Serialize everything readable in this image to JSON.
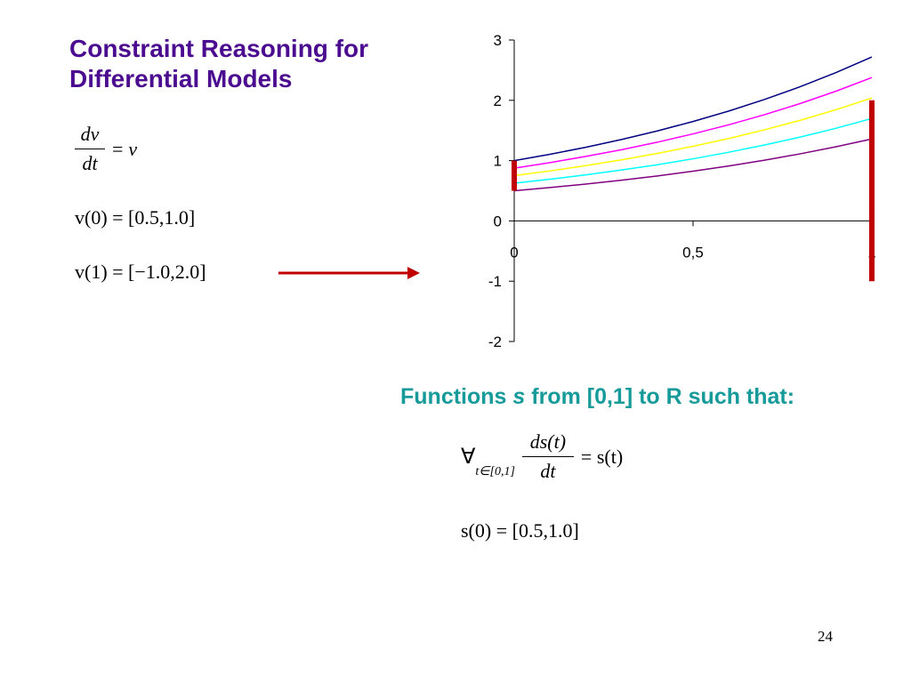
{
  "slide": {
    "title": "Constraint Reasoning for Differential Models",
    "title_color": "#4B0C8F",
    "page_number": "24"
  },
  "equations_left": {
    "ode_numerator": "dv",
    "ode_denominator": "dt",
    "ode_equals": "=",
    "ode_rhs": "v",
    "initial_condition": "v(0) = [0.5,1.0]",
    "final_condition": "v(1) = [−1.0,2.0]"
  },
  "functions_block": {
    "lead": "Functions",
    "var": "s",
    "rest": "from [0,1] to R such that:",
    "color": "#169A9A",
    "forall_symbol": "∀",
    "forall_subscript": "t∈[0,1]",
    "ode_numerator": "ds(t)",
    "ode_denominator": "dt",
    "ode_rhs": "= s(t)",
    "initial_condition": "s(0) = [0.5,1.0]"
  },
  "arrow": {
    "color": "#C00000"
  },
  "chart_data": {
    "type": "line",
    "x_ticks": [
      "0",
      "0,5",
      "1"
    ],
    "y_ticks": [
      "-2",
      "-1",
      "0",
      "1",
      "2",
      "3"
    ],
    "xlim": [
      0,
      1
    ],
    "ylim": [
      -2,
      3
    ],
    "grid": false,
    "legend": "none",
    "series": [
      {
        "color": "#000080",
        "x": [
          0,
          0.1,
          0.2,
          0.3,
          0.4,
          0.5,
          0.6,
          0.7,
          0.8,
          0.9,
          1.0
        ],
        "values": [
          1.0,
          1.105,
          1.221,
          1.35,
          1.492,
          1.649,
          1.822,
          2.014,
          2.226,
          2.46,
          2.718
        ]
      },
      {
        "color": "#FF00FF",
        "x": [
          0,
          0.1,
          0.2,
          0.3,
          0.4,
          0.5,
          0.6,
          0.7,
          0.8,
          0.9,
          1.0
        ],
        "values": [
          0.875,
          0.967,
          1.069,
          1.181,
          1.305,
          1.443,
          1.594,
          1.762,
          1.947,
          2.152,
          2.378
        ]
      },
      {
        "color": "#FFFF00",
        "x": [
          0,
          0.1,
          0.2,
          0.3,
          0.4,
          0.5,
          0.6,
          0.7,
          0.8,
          0.9,
          1.0
        ],
        "values": [
          0.75,
          0.829,
          0.916,
          1.012,
          1.119,
          1.237,
          1.367,
          1.511,
          1.669,
          1.845,
          2.039
        ]
      },
      {
        "color": "#00FFFF",
        "x": [
          0,
          0.1,
          0.2,
          0.3,
          0.4,
          0.5,
          0.6,
          0.7,
          0.8,
          0.9,
          1.0
        ],
        "values": [
          0.625,
          0.691,
          0.763,
          0.844,
          0.932,
          1.03,
          1.139,
          1.259,
          1.391,
          1.537,
          1.699
        ]
      },
      {
        "color": "#800080",
        "x": [
          0,
          0.1,
          0.2,
          0.3,
          0.4,
          0.5,
          0.6,
          0.7,
          0.8,
          0.9,
          1.0
        ],
        "values": [
          0.5,
          0.553,
          0.611,
          0.675,
          0.746,
          0.824,
          0.911,
          1.007,
          1.113,
          1.23,
          1.359
        ]
      }
    ],
    "interval_bars": [
      {
        "x": 0,
        "range": [
          0.5,
          1.0
        ],
        "color": "#C00000"
      },
      {
        "x": 1,
        "range": [
          -1.0,
          2.0
        ],
        "color": "#C00000"
      }
    ]
  }
}
